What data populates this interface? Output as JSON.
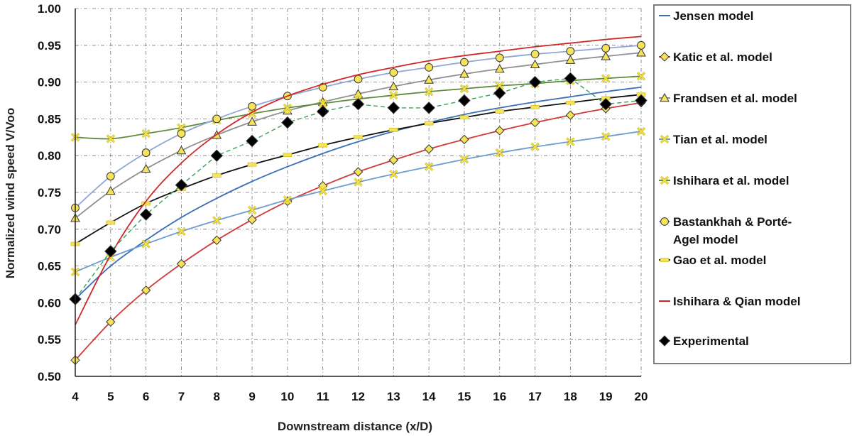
{
  "chart_data": {
    "type": "line",
    "title": "",
    "xlabel": "Downstream distance (x/D)",
    "ylabel": "Normalized wind speed V/Voo",
    "xlim": [
      4,
      20
    ],
    "ylim": [
      0.5,
      1.0
    ],
    "x_ticks": [
      "4",
      "5",
      "6",
      "7",
      "8",
      "9",
      "10",
      "11",
      "12",
      "13",
      "14",
      "15",
      "16",
      "17",
      "18",
      "19",
      "20"
    ],
    "y_ticks": [
      "0.50",
      "0.55",
      "0.60",
      "0.65",
      "0.70",
      "0.75",
      "0.80",
      "0.85",
      "0.90",
      "0.95",
      "1.00"
    ],
    "grid": true,
    "legend_position": "right",
    "series": [
      {
        "name": "Jensen model",
        "line_color": "#3a6fb8",
        "marker": "none",
        "x": [
          4,
          5,
          6,
          7,
          8,
          9,
          10,
          11,
          12,
          13,
          14,
          15,
          16,
          17,
          18,
          19,
          20
        ],
        "values": [
          0.605,
          0.65,
          0.685,
          0.716,
          0.742,
          0.765,
          0.785,
          0.803,
          0.819,
          0.833,
          0.845,
          0.856,
          0.865,
          0.873,
          0.88,
          0.887,
          0.893
        ]
      },
      {
        "name": "Katic et al. model",
        "line_color": "#d03a3a",
        "marker": "diamond",
        "marker_fill": "#f5e35a",
        "x": [
          4,
          5,
          6,
          7,
          8,
          9,
          10,
          11,
          12,
          13,
          14,
          15,
          16,
          17,
          18,
          19,
          20
        ],
        "values": [
          0.522,
          0.574,
          0.617,
          0.653,
          0.685,
          0.713,
          0.738,
          0.759,
          0.778,
          0.794,
          0.809,
          0.822,
          0.834,
          0.845,
          0.855,
          0.864,
          0.872
        ]
      },
      {
        "name": "Frandsen et al. model",
        "line_color": "#909090",
        "marker": "triangle",
        "marker_fill": "#f5e35a",
        "x": [
          4,
          5,
          6,
          7,
          8,
          9,
          10,
          11,
          12,
          13,
          14,
          15,
          16,
          17,
          18,
          19,
          20
        ],
        "values": [
          0.715,
          0.752,
          0.782,
          0.807,
          0.828,
          0.846,
          0.861,
          0.873,
          0.884,
          0.894,
          0.903,
          0.911,
          0.918,
          0.924,
          0.93,
          0.935,
          0.94
        ]
      },
      {
        "name": "Tian et al. model",
        "line_color": "#6e9ccf",
        "marker": "x",
        "marker_fill": "#f5e35a",
        "x": [
          4,
          5,
          6,
          7,
          8,
          9,
          10,
          11,
          12,
          13,
          14,
          15,
          16,
          17,
          18,
          19,
          20
        ],
        "values": [
          0.642,
          0.662,
          0.68,
          0.697,
          0.712,
          0.726,
          0.74,
          0.752,
          0.764,
          0.775,
          0.785,
          0.795,
          0.804,
          0.812,
          0.819,
          0.826,
          0.833
        ]
      },
      {
        "name": "Ishihara et al. model",
        "line_color": "#5e8a3a",
        "marker": "x",
        "marker_fill": "#f5e35a",
        "x": [
          4,
          5,
          6,
          7,
          8,
          9,
          10,
          11,
          12,
          13,
          14,
          15,
          16,
          17,
          18,
          19,
          20
        ],
        "values": [
          0.825,
          0.823,
          0.83,
          0.838,
          0.848,
          0.857,
          0.865,
          0.871,
          0.877,
          0.882,
          0.887,
          0.891,
          0.895,
          0.898,
          0.902,
          0.905,
          0.908
        ]
      },
      {
        "name": "Bastankhah & Porté-Agel model",
        "legend_lines": [
          "Bastankhah & Porté-",
          "Agel model"
        ],
        "line_color": "#8fa6d6",
        "marker": "circle",
        "marker_fill": "#f5e35a",
        "x": [
          4,
          5,
          6,
          7,
          8,
          9,
          10,
          11,
          12,
          13,
          14,
          15,
          16,
          17,
          18,
          19,
          20
        ],
        "values": [
          0.729,
          0.772,
          0.804,
          0.83,
          0.85,
          0.867,
          0.881,
          0.893,
          0.904,
          0.913,
          0.92,
          0.927,
          0.933,
          0.938,
          0.942,
          0.946,
          0.95
        ]
      },
      {
        "name": "Gao et al. model",
        "line_color": "#111111",
        "marker": "dash",
        "marker_fill": "#f5e35a",
        "x": [
          4,
          5,
          6,
          7,
          8,
          9,
          10,
          11,
          12,
          13,
          14,
          15,
          16,
          17,
          18,
          19,
          20
        ],
        "values": [
          0.68,
          0.709,
          0.735,
          0.755,
          0.773,
          0.788,
          0.801,
          0.814,
          0.825,
          0.835,
          0.844,
          0.852,
          0.86,
          0.866,
          0.872,
          0.878,
          0.883
        ]
      },
      {
        "name": "Ishihara & Qian model",
        "line_color": "#d02828",
        "marker": "none",
        "x": [
          4,
          5,
          6,
          7,
          8,
          9,
          10,
          11,
          12,
          13,
          14,
          15,
          16,
          17,
          18,
          19,
          20
        ],
        "values": [
          0.57,
          0.665,
          0.738,
          0.79,
          0.829,
          0.859,
          0.881,
          0.897,
          0.91,
          0.92,
          0.929,
          0.936,
          0.942,
          0.948,
          0.953,
          0.958,
          0.962
        ]
      },
      {
        "name": "Experimental",
        "line_color": "#3aa05a",
        "line_style": "dashed",
        "marker": "diamond",
        "marker_fill": "#000000",
        "x": [
          4,
          5,
          6,
          7,
          8,
          9,
          10,
          11,
          12,
          13,
          14,
          15,
          16,
          17,
          18,
          19,
          20
        ],
        "values": [
          0.605,
          0.67,
          0.72,
          0.76,
          0.8,
          0.82,
          0.845,
          0.86,
          0.87,
          0.865,
          0.865,
          0.875,
          0.885,
          0.9,
          0.905,
          0.87,
          0.875
        ]
      }
    ]
  }
}
